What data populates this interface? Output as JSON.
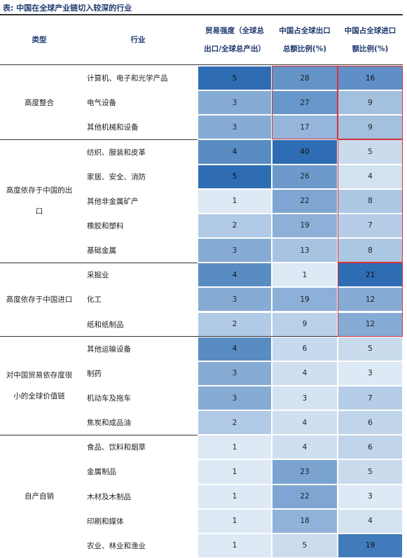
{
  "title": "表: 中国在全球产业链切入较深的行业",
  "table": {
    "header": [
      "类型",
      "行业",
      "贸易强度（全球总出口/全球总产出）",
      "中国占全球出口总额比例(%)",
      "中国占全球进口额比例(%)"
    ],
    "groups": [
      {
        "type": "高度整合",
        "rows": [
          {
            "industry": "计算机、电子和光学产品",
            "values": [
              5,
              28,
              16
            ]
          },
          {
            "industry": "电气设备",
            "values": [
              3,
              27,
              9
            ]
          },
          {
            "industry": "其他机械和设备",
            "values": [
              3,
              17,
              9
            ]
          }
        ]
      },
      {
        "type": "高度依存于中国的出口",
        "rows": [
          {
            "industry": "纺织、服装和皮革",
            "values": [
              4,
              40,
              5
            ]
          },
          {
            "industry": "家居、安全、消防",
            "values": [
              5,
              26,
              4
            ]
          },
          {
            "industry": "其他非金属矿产",
            "values": [
              1,
              22,
              8
            ]
          },
          {
            "industry": "橡胶和塑料",
            "values": [
              2,
              19,
              7
            ]
          },
          {
            "industry": "基础金属",
            "values": [
              3,
              13,
              8
            ]
          }
        ]
      },
      {
        "type": "高度依存于中国进口",
        "rows": [
          {
            "industry": "采掘业",
            "values": [
              4,
              1,
              21
            ]
          },
          {
            "industry": "化工",
            "values": [
              3,
              19,
              12
            ]
          },
          {
            "industry": "纸和纸制品",
            "values": [
              2,
              9,
              12
            ]
          }
        ]
      },
      {
        "type": "对中国贸易依存度很小的全球价值链",
        "rows": [
          {
            "industry": "其他运输设备",
            "values": [
              4,
              6,
              5
            ]
          },
          {
            "industry": "制药",
            "values": [
              3,
              4,
              3
            ]
          },
          {
            "industry": "机动车及拖车",
            "values": [
              3,
              3,
              7
            ]
          },
          {
            "industry": "焦炭和成品油",
            "values": [
              2,
              4,
              6
            ]
          }
        ]
      },
      {
        "type": "自产自销",
        "rows": [
          {
            "industry": "食品、饮料和烟草",
            "values": [
              1,
              4,
              6
            ]
          },
          {
            "industry": "金属制品",
            "values": [
              1,
              23,
              5
            ]
          },
          {
            "industry": "木材及木制品",
            "values": [
              1,
              22,
              3
            ]
          },
          {
            "industry": "印刷和媒体",
            "values": [
              1,
              18,
              4
            ]
          },
          {
            "industry": "农业、林业和渔业",
            "values": [
              1,
              5,
              19
            ]
          }
        ]
      }
    ]
  }
}
